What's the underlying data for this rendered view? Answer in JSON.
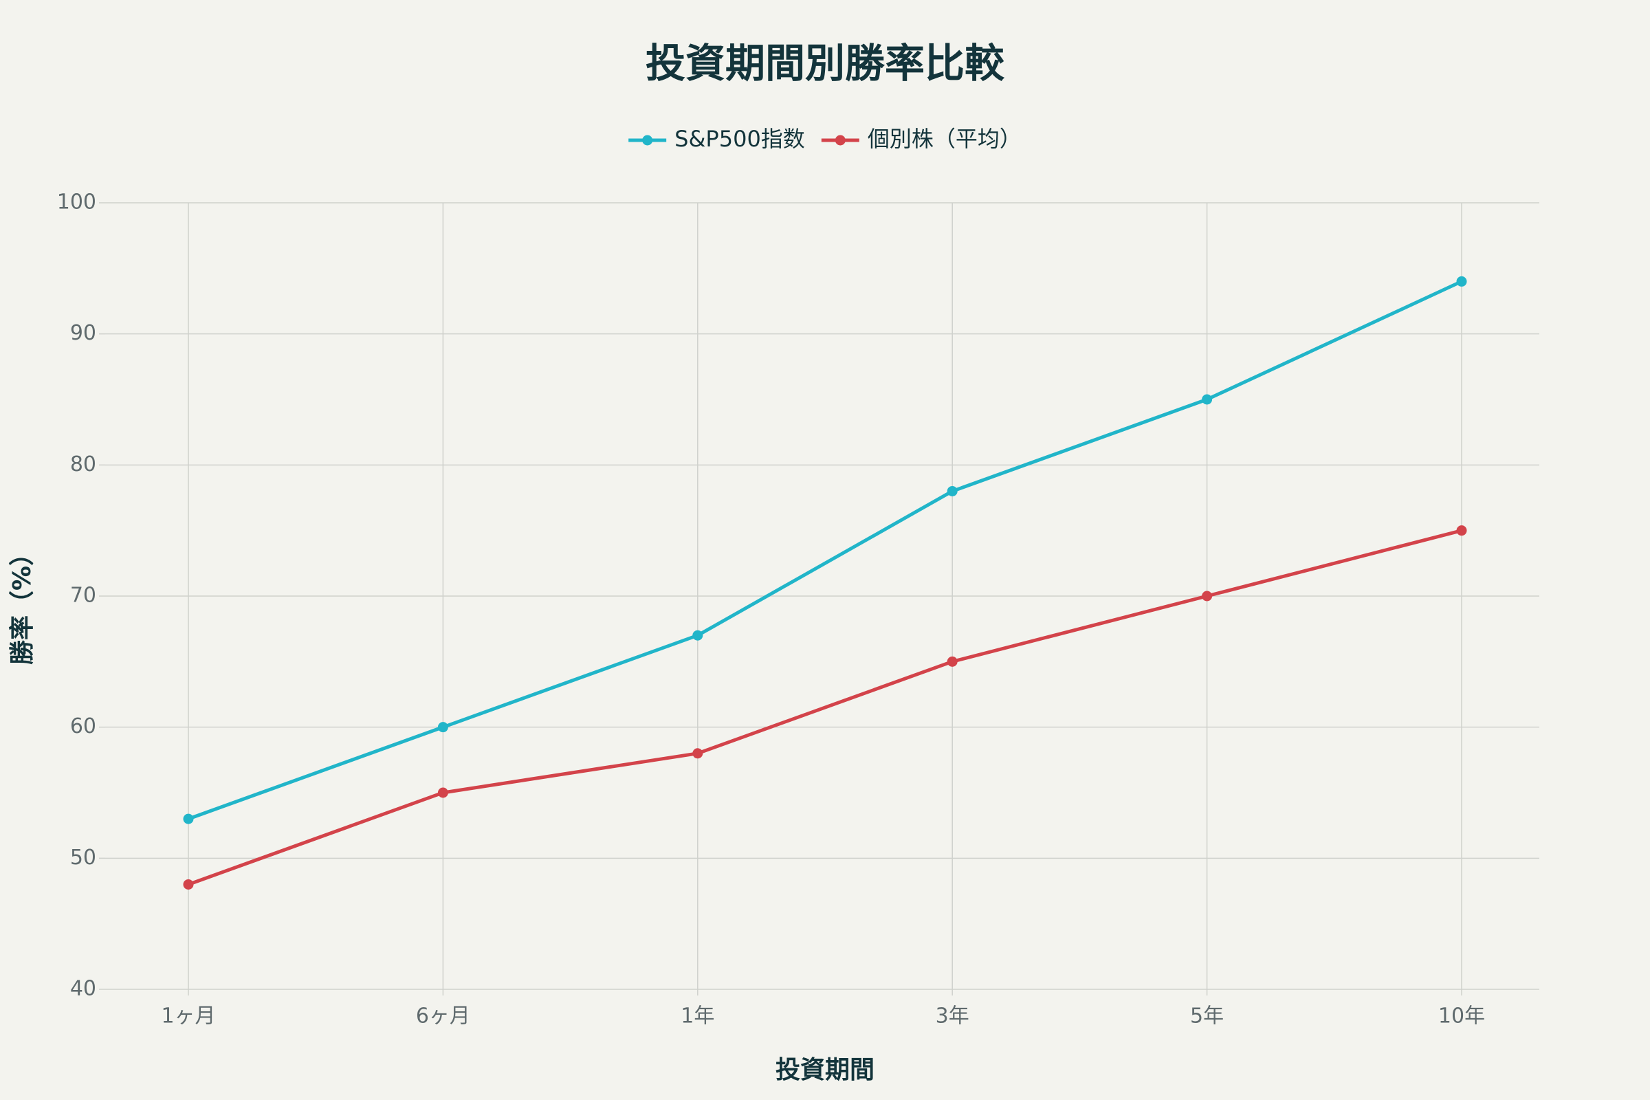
{
  "chart_data": {
    "type": "line",
    "title": "投資期間別勝率比較",
    "x_label": "投資期間",
    "y_label": "勝率（%）",
    "categories": [
      "1ヶ月",
      "6ヶ月",
      "1年",
      "3年",
      "5年",
      "10年"
    ],
    "series": [
      {
        "name": "S&P500指数",
        "color": "#21b5c9",
        "values": [
          53,
          60,
          67,
          78,
          85,
          94
        ]
      },
      {
        "name": "個別株（平均）",
        "color": "#d3434a",
        "values": [
          48,
          55,
          58,
          65,
          70,
          75
        ]
      }
    ],
    "ylim": [
      40,
      100
    ],
    "yticks": [
      40,
      50,
      60,
      70,
      80,
      90,
      100
    ],
    "grid": true,
    "legend": "top",
    "markers": true
  }
}
